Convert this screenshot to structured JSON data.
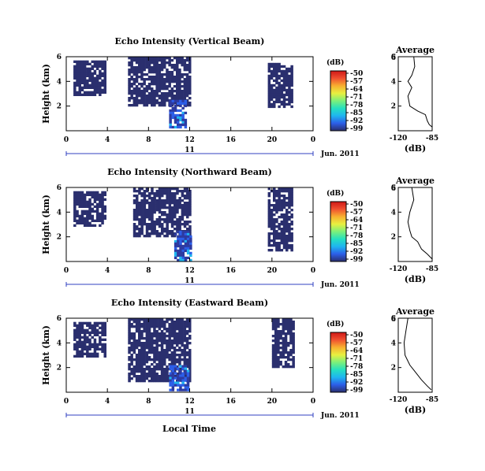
{
  "chart_data": {
    "type": "heatmap",
    "xlabel": "Local Time",
    "x_ticks": [
      "0",
      "4",
      "8",
      "12",
      "16",
      "20",
      "0"
    ],
    "xlim": [
      0,
      24
    ],
    "date_bar": {
      "day": "11",
      "label": "Jun. 2011"
    },
    "y_ticks": [
      "2",
      "4",
      "6"
    ],
    "ylabel": "Height (km)",
    "ylim": [
      0,
      6
    ],
    "colorbar": {
      "unit": "(dB)",
      "ticks": [
        "-50",
        "-57",
        "-64",
        "-71",
        "-78",
        "-85",
        "-92",
        "-99"
      ],
      "range": [
        -99,
        -50
      ],
      "colors": [
        "#2a2f6e",
        "#2c5ee8",
        "#1fb5f0",
        "#25e0c0",
        "#7cf07a",
        "#e8f040",
        "#f8b030",
        "#f05030",
        "#d01818"
      ]
    },
    "panels": [
      {
        "title": "Echo Intensity (Vertical Beam)",
        "avg_title": "Average",
        "avg_xticks": [
          "-120",
          "-85"
        ],
        "avg_xlabel": "(dB)",
        "avg_xlim": [
          -120,
          -85
        ],
        "blocks": [
          {
            "x": [
              0.7,
              3.8
            ],
            "y": [
              3.0,
              5.7
            ]
          },
          {
            "x": [
              6.0,
              12.0
            ],
            "y": [
              2.0,
              6.0
            ]
          },
          {
            "x": [
              10.0,
              11.5
            ],
            "y": [
              0.3,
              2.5
            ]
          },
          {
            "x": [
              19.6,
              22.0
            ],
            "y": [
              2.0,
              5.5
            ]
          }
        ],
        "avg_profile": [
          [
            -104,
            6.0
          ],
          [
            -103,
            5.2
          ],
          [
            -106,
            4.5
          ],
          [
            -110,
            4.0
          ],
          [
            -106,
            3.5
          ],
          [
            -110,
            2.8
          ],
          [
            -108,
            2.0
          ],
          [
            -100,
            1.6
          ],
          [
            -92,
            1.3
          ],
          [
            -90,
            0.8
          ],
          [
            -88,
            0.5
          ],
          [
            -85,
            0.3
          ]
        ]
      },
      {
        "title": "Echo Intensity (Northward Beam)",
        "avg_title": "Average",
        "avg_xticks": [
          "-120",
          "-85"
        ],
        "avg_xlabel": "(dB)",
        "avg_xlim": [
          -120,
          -85
        ],
        "blocks": [
          {
            "x": [
              0.7,
              3.8
            ],
            "y": [
              3.0,
              5.7
            ]
          },
          {
            "x": [
              6.5,
              12.0
            ],
            "y": [
              2.0,
              6.0
            ]
          },
          {
            "x": [
              10.5,
              12.0
            ],
            "y": [
              0.2,
              2.5
            ]
          },
          {
            "x": [
              19.6,
              22.0
            ],
            "y": [
              1.0,
              6.0
            ]
          }
        ],
        "avg_profile": [
          [
            -106,
            6.0
          ],
          [
            -104,
            5.0
          ],
          [
            -108,
            4.0
          ],
          [
            -110,
            3.2
          ],
          [
            -108,
            2.5
          ],
          [
            -106,
            2.0
          ],
          [
            -100,
            1.6
          ],
          [
            -96,
            1.0
          ],
          [
            -90,
            0.6
          ],
          [
            -85,
            0.2
          ]
        ]
      },
      {
        "title": "Echo Intensity (Eastward Beam)",
        "avg_title": "Average",
        "avg_xticks": [
          "-120",
          "-85"
        ],
        "avg_xlabel": "(dB)",
        "avg_xlim": [
          -120,
          -85
        ],
        "blocks": [
          {
            "x": [
              0.7,
              3.8
            ],
            "y": [
              3.0,
              5.7
            ]
          },
          {
            "x": [
              6.0,
              12.0
            ],
            "y": [
              1.0,
              6.0
            ]
          },
          {
            "x": [
              10.0,
              11.8
            ],
            "y": [
              0.1,
              2.2
            ]
          },
          {
            "x": [
              20.0,
              22.0
            ],
            "y": [
              2.0,
              6.0
            ]
          }
        ],
        "avg_profile": [
          [
            -110,
            6.0
          ],
          [
            -112,
            5.0
          ],
          [
            -114,
            4.0
          ],
          [
            -113,
            3.0
          ],
          [
            -108,
            2.2
          ],
          [
            -104,
            1.8
          ],
          [
            -100,
            1.4
          ],
          [
            -96,
            1.0
          ],
          [
            -90,
            0.5
          ],
          [
            -86,
            0.2
          ]
        ]
      }
    ]
  }
}
